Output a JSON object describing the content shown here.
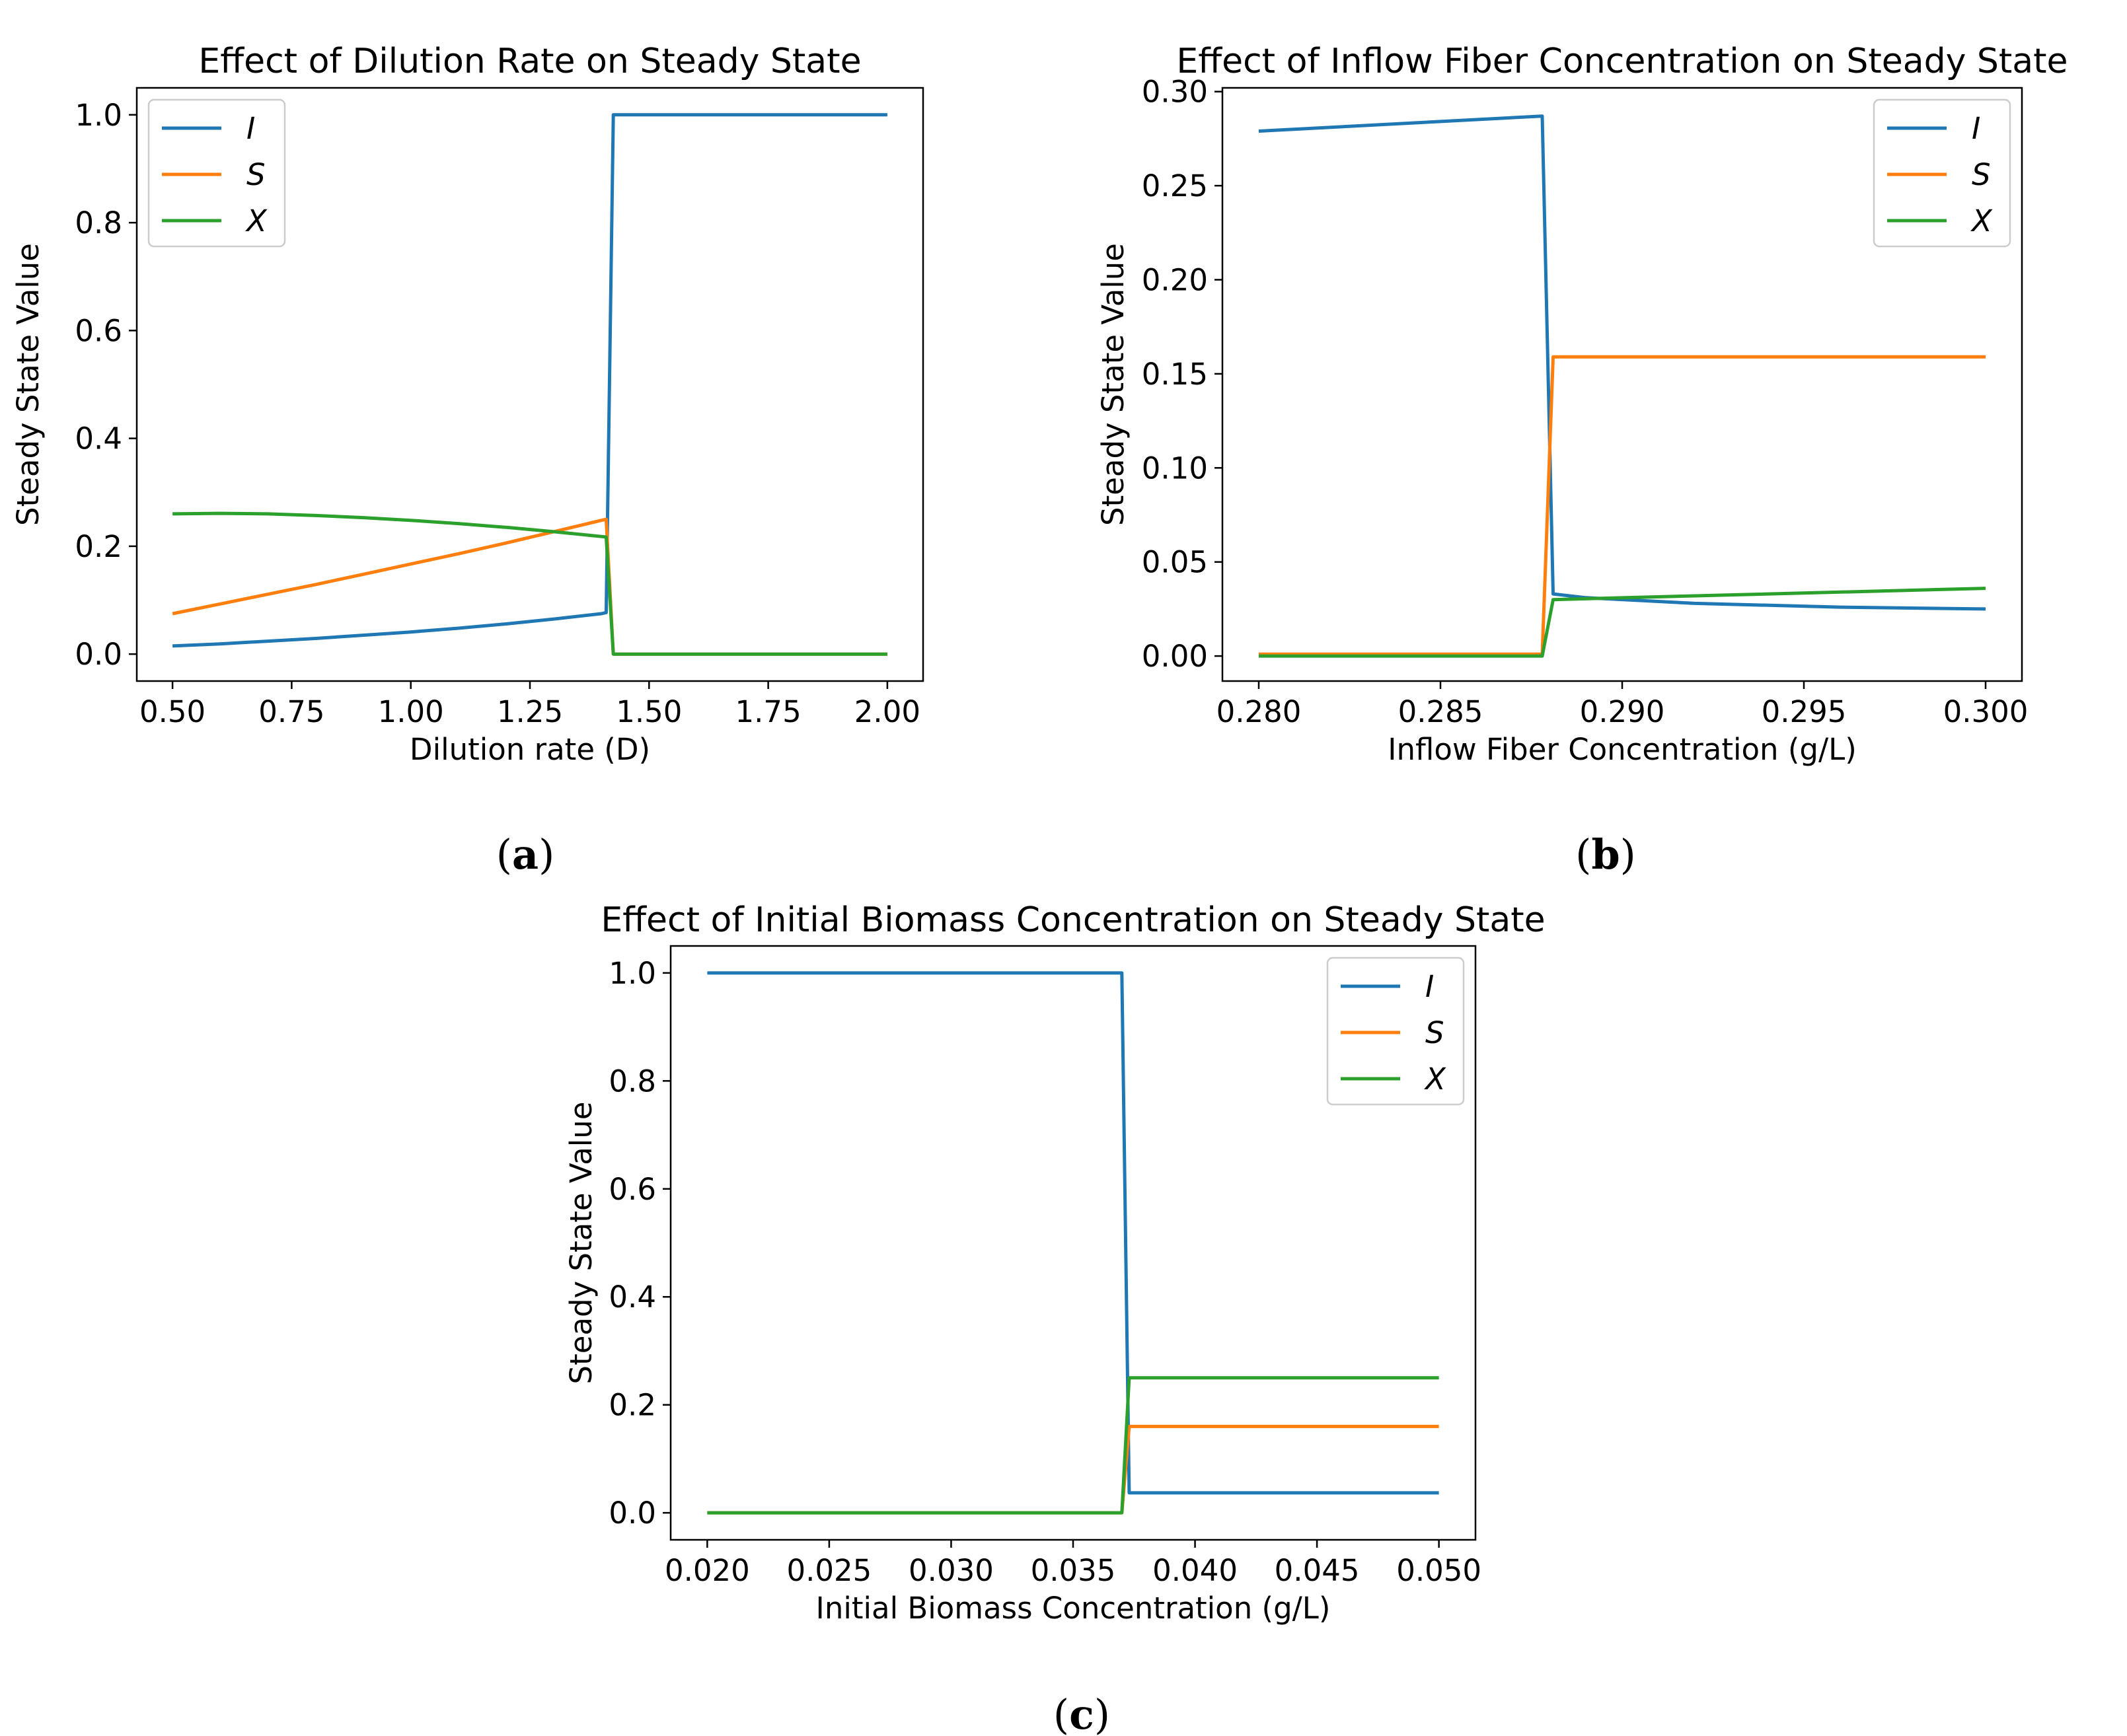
{
  "chart_data": [
    {
      "id": "a",
      "type": "line",
      "caption": "a",
      "title": "Effect of Dilution Rate on Steady State",
      "xlabel": "Dilution rate (D)",
      "ylabel": "Steady State Value",
      "xlim": [
        0.425,
        2.075
      ],
      "ylim": [
        -0.05,
        1.05
      ],
      "xticks": [
        0.5,
        0.75,
        1.0,
        1.25,
        1.5,
        1.75,
        2.0
      ],
      "xtick_labels": [
        "0.50",
        "0.75",
        "1.00",
        "1.25",
        "1.50",
        "1.75",
        "2.00"
      ],
      "yticks": [
        0.0,
        0.2,
        0.4,
        0.6,
        0.8,
        1.0
      ],
      "ytick_labels": [
        "0.0",
        "0.2",
        "0.4",
        "0.6",
        "0.8",
        "1.0"
      ],
      "legend_position": "top-left",
      "series": [
        {
          "name": "I",
          "color": "#1f77b4",
          "x": [
            0.5,
            0.6,
            0.7,
            0.8,
            0.9,
            1.0,
            1.1,
            1.2,
            1.3,
            1.4,
            1.41,
            1.425,
            1.5,
            2.0
          ],
          "y": [
            0.015,
            0.019,
            0.024,
            0.029,
            0.035,
            0.041,
            0.048,
            0.056,
            0.065,
            0.075,
            0.077,
            1.0,
            1.0,
            1.0
          ]
        },
        {
          "name": "S",
          "color": "#ff7f0e",
          "x": [
            0.5,
            0.6,
            0.7,
            0.8,
            0.9,
            1.0,
            1.1,
            1.2,
            1.3,
            1.4,
            1.41,
            1.425,
            1.5,
            2.0
          ],
          "y": [
            0.075,
            0.093,
            0.111,
            0.129,
            0.148,
            0.167,
            0.186,
            0.206,
            0.227,
            0.248,
            0.25,
            0.0,
            0.0,
            0.0
          ]
        },
        {
          "name": "X",
          "color": "#2ca02c",
          "x": [
            0.5,
            0.6,
            0.7,
            0.8,
            0.9,
            1.0,
            1.1,
            1.2,
            1.3,
            1.4,
            1.41,
            1.425,
            1.5,
            2.0
          ],
          "y": [
            0.26,
            0.261,
            0.26,
            0.257,
            0.253,
            0.248,
            0.242,
            0.235,
            0.227,
            0.218,
            0.217,
            0.0,
            0.0,
            0.0
          ]
        }
      ]
    },
    {
      "id": "b",
      "type": "line",
      "caption": "b",
      "title": "Effect of Inflow Fiber Concentration on Steady State",
      "xlabel": "Inflow Fiber Concentration (g/L)",
      "ylabel": "Steady State Value",
      "xlim": [
        0.279,
        0.301
      ],
      "ylim": [
        -0.0133,
        0.302
      ],
      "xticks": [
        0.28,
        0.285,
        0.29,
        0.295,
        0.3
      ],
      "xtick_labels": [
        "0.280",
        "0.285",
        "0.290",
        "0.295",
        "0.300"
      ],
      "yticks": [
        0.0,
        0.05,
        0.1,
        0.15,
        0.2,
        0.25,
        0.3
      ],
      "ytick_labels": [
        "0.00",
        "0.05",
        "0.10",
        "0.15",
        "0.20",
        "0.25",
        "0.30"
      ],
      "legend_position": "top-right",
      "series": [
        {
          "name": "I",
          "color": "#1f77b4",
          "x": [
            0.28,
            0.2878,
            0.2881,
            0.289,
            0.292,
            0.296,
            0.3
          ],
          "y": [
            0.279,
            0.287,
            0.033,
            0.031,
            0.028,
            0.026,
            0.025
          ]
        },
        {
          "name": "S",
          "color": "#ff7f0e",
          "x": [
            0.28,
            0.2878,
            0.2881,
            0.29,
            0.3
          ],
          "y": [
            0.001,
            0.001,
            0.159,
            0.159,
            0.159
          ]
        },
        {
          "name": "X",
          "color": "#2ca02c",
          "x": [
            0.28,
            0.2878,
            0.2881,
            0.292,
            0.3
          ],
          "y": [
            0.0,
            0.0,
            0.03,
            0.032,
            0.036
          ]
        }
      ]
    },
    {
      "id": "c",
      "type": "line",
      "caption": "c",
      "title": "Effect of Initial Biomass Concentration on Steady State",
      "xlabel": "Initial Biomass Concentration (g/L)",
      "ylabel": "Steady State Value",
      "xlim": [
        0.0185,
        0.0515
      ],
      "ylim": [
        -0.05,
        1.05
      ],
      "xticks": [
        0.02,
        0.025,
        0.03,
        0.035,
        0.04,
        0.045,
        0.05
      ],
      "xtick_labels": [
        "0.020",
        "0.025",
        "0.030",
        "0.035",
        "0.040",
        "0.045",
        "0.050"
      ],
      "yticks": [
        0.0,
        0.2,
        0.4,
        0.6,
        0.8,
        1.0
      ],
      "ytick_labels": [
        "0.0",
        "0.2",
        "0.4",
        "0.6",
        "0.8",
        "1.0"
      ],
      "legend_position": "top-right",
      "series": [
        {
          "name": "I",
          "color": "#1f77b4",
          "x": [
            0.02,
            0.037,
            0.0373,
            0.05
          ],
          "y": [
            1.0,
            1.0,
            0.037,
            0.037
          ]
        },
        {
          "name": "S",
          "color": "#ff7f0e",
          "x": [
            0.02,
            0.037,
            0.0373,
            0.05
          ],
          "y": [
            0.0,
            0.0,
            0.16,
            0.16
          ]
        },
        {
          "name": "X",
          "color": "#2ca02c",
          "x": [
            0.02,
            0.037,
            0.0373,
            0.05
          ],
          "y": [
            0.0,
            0.0,
            0.25,
            0.25
          ]
        }
      ]
    }
  ]
}
